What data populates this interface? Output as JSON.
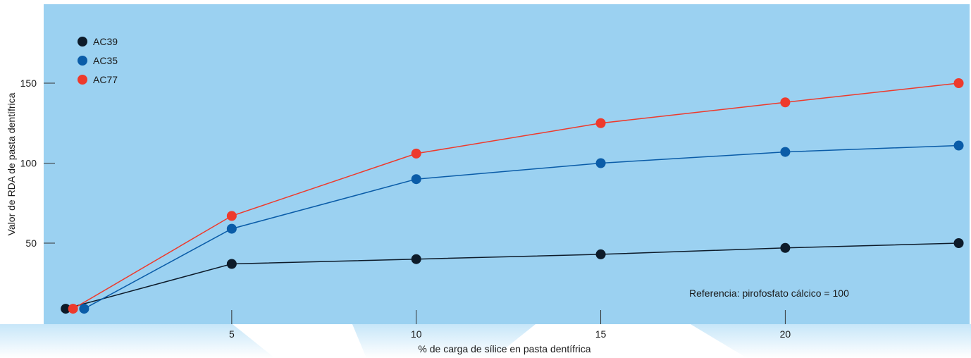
{
  "chart_data": {
    "type": "line",
    "title": "",
    "xlabel": "% de carga de sílice en pasta dentífrica",
    "ylabel": "Valor de RDA de pasta dentífrica",
    "x_ticks": [
      5,
      10,
      15,
      20
    ],
    "y_ticks": [
      50,
      100,
      150
    ],
    "annotation": "Referencia: pirofosfato cálcico = 100",
    "legend_position": "top-left",
    "grid": false,
    "colors": {
      "plot_background": "#9bd1f1",
      "AC39": "#0d1b2a",
      "AC35": "#0a5ca8",
      "AC77": "#ee3a2c"
    },
    "series": [
      {
        "name": "AC39",
        "x": [
          0.5,
          5,
          10,
          15,
          20,
          24.7
        ],
        "y": [
          9,
          37,
          40,
          43,
          47,
          50
        ]
      },
      {
        "name": "AC35",
        "x": [
          1.0,
          5,
          10,
          15,
          20,
          24.7
        ],
        "y": [
          9,
          59,
          90,
          100,
          107,
          111
        ]
      },
      {
        "name": "AC77",
        "x": [
          0.7,
          5,
          10,
          15,
          20,
          24.7
        ],
        "y": [
          9,
          67,
          106,
          125,
          138,
          150
        ]
      }
    ]
  }
}
